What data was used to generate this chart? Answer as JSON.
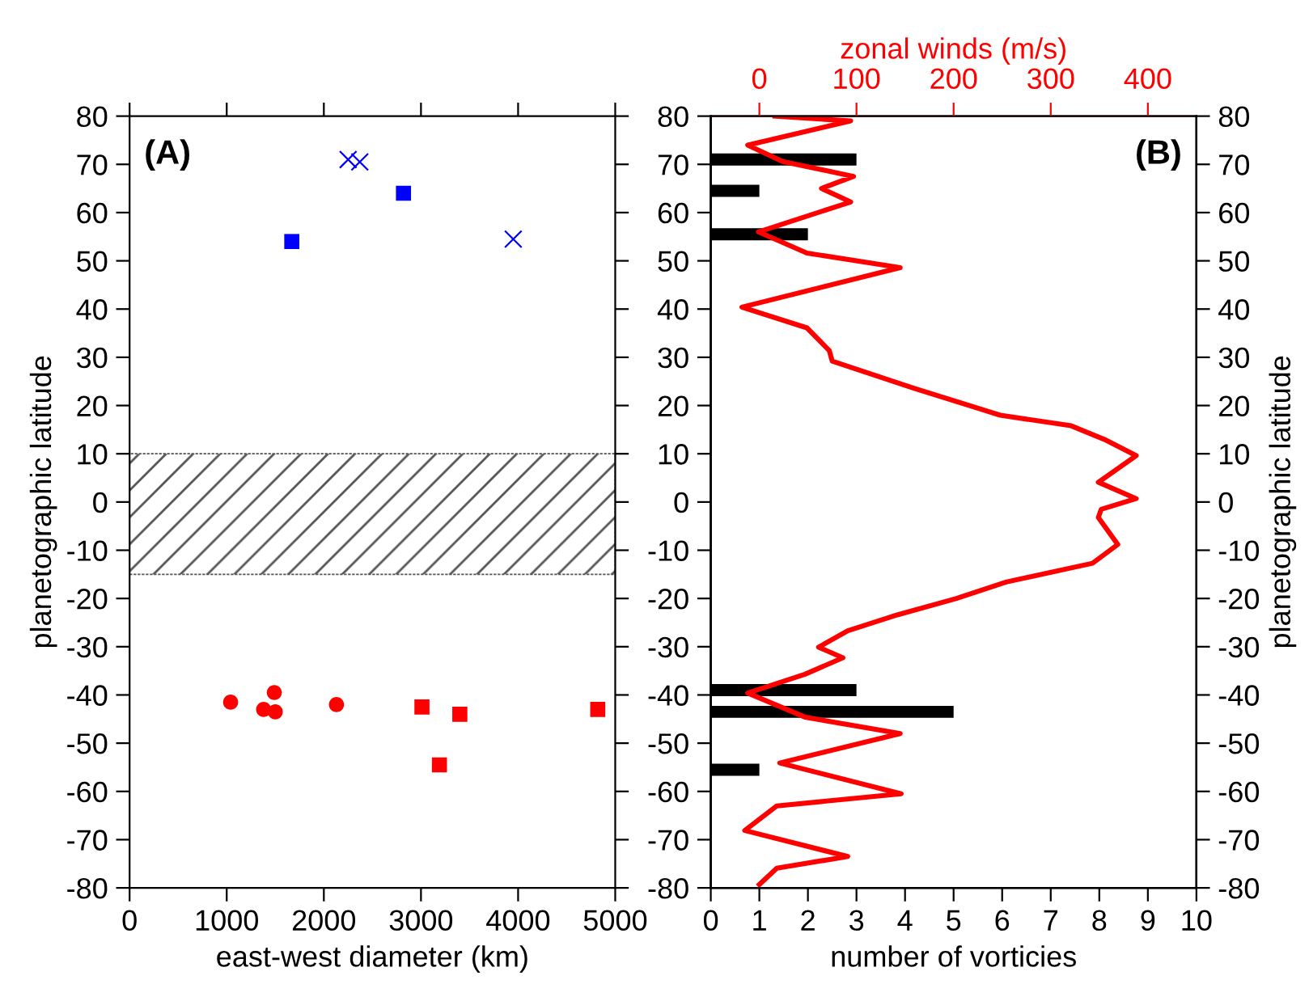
{
  "chart_data": [
    {
      "type": "scatter",
      "xlabel": "east-west diameter (km)",
      "ylabel": "planetographic latitude",
      "annotations": [
        "(A)"
      ],
      "xlim": [
        0,
        5000
      ],
      "xticks": [
        0,
        1000,
        2000,
        3000,
        4000,
        5000
      ],
      "ylim": [
        -80,
        80
      ],
      "yticks": [
        -80,
        -70,
        -60,
        -50,
        -40,
        -30,
        -20,
        -10,
        0,
        10,
        20,
        30,
        40,
        50,
        60,
        70,
        80
      ],
      "bands": [
        {
          "axis": "y",
          "from": -15,
          "to": 10,
          "color": "#555555"
        }
      ],
      "series": [
        {
          "color": "#0000ff",
          "marker": "square",
          "x": [
            2820,
            1670
          ],
          "values": [
            64,
            54
          ]
        },
        {
          "color": "#0000ff",
          "marker": "cross",
          "x": [
            2250,
            2370,
            3950
          ],
          "values": [
            71,
            70.5,
            54.5
          ]
        },
        {
          "color": "#ff0000",
          "marker": "circle",
          "x": [
            1040,
            1380,
            1490,
            1500,
            2130
          ],
          "values": [
            -41.5,
            -43,
            -39.5,
            -43.5,
            -42
          ]
        },
        {
          "color": "#ff0000",
          "marker": "square",
          "x": [
            3010,
            3400,
            3190,
            4820
          ],
          "values": [
            -42.5,
            -44,
            -54.5,
            -43
          ]
        }
      ],
      "grid": false,
      "legend": false
    },
    {
      "type": "bar",
      "orientation": "horizontal",
      "xlabel": "number of vorticies",
      "x2label": "zonal winds (m/s)",
      "y2label": "planetographic latitude",
      "annotations": [
        "(B)"
      ],
      "xlim": [
        0,
        10
      ],
      "xticks": [
        0,
        1,
        2,
        3,
        4,
        5,
        6,
        7,
        8,
        9,
        10
      ],
      "x2lim": [
        -50,
        450
      ],
      "x2ticks": [
        0,
        100,
        200,
        300,
        400
      ],
      "ylim": [
        -80,
        80
      ],
      "yticks": [
        -80,
        -70,
        -60,
        -50,
        -40,
        -30,
        -20,
        -10,
        0,
        10,
        20,
        30,
        40,
        50,
        60,
        70,
        80
      ],
      "y2lim": [
        -80,
        80
      ],
      "y2ticks": [
        -80,
        -70,
        -60,
        -50,
        -40,
        -30,
        -20,
        -10,
        0,
        10,
        20,
        30,
        40,
        50,
        60,
        70,
        80
      ],
      "series": [
        {
          "type": "bar",
          "color": "#000000",
          "x": [
            71,
            64.5,
            55.5,
            -39,
            -43.5,
            -55.5
          ],
          "values": [
            3,
            1,
            2,
            3,
            5,
            1
          ]
        },
        {
          "type": "line",
          "axis": "x2",
          "color": "#ff0000",
          "x": [
            80,
            79,
            74,
            70.6,
            67.5,
            65,
            62.2,
            56,
            51.6,
            48.6,
            40.4,
            36.1,
            31.4,
            29.2,
            23.6,
            18,
            15.8,
            13,
            9.6,
            4.1,
            0.7,
            -1.5,
            -3.2,
            -8.8,
            -12.7,
            -16.6,
            -20,
            -23.4,
            -26.7,
            -30.1,
            -32.3,
            -35.7,
            -39.6,
            -44.6,
            -48,
            -54.1,
            -60.5,
            -63,
            -68.1,
            -73.5,
            -75.9,
            -79.3
          ],
          "values": [
            16,
            94,
            -12,
            24,
            97,
            64,
            94,
            -1,
            49,
            145,
            -18,
            49,
            72,
            75,
            159,
            248,
            321,
            355,
            388,
            349,
            388,
            352,
            349,
            369,
            343,
            254,
            203,
            142,
            91,
            61,
            86,
            47,
            -12,
            47,
            145,
            21,
            146,
            18,
            -15,
            91,
            18,
            0
          ]
        }
      ],
      "grid": false,
      "legend": false
    }
  ]
}
